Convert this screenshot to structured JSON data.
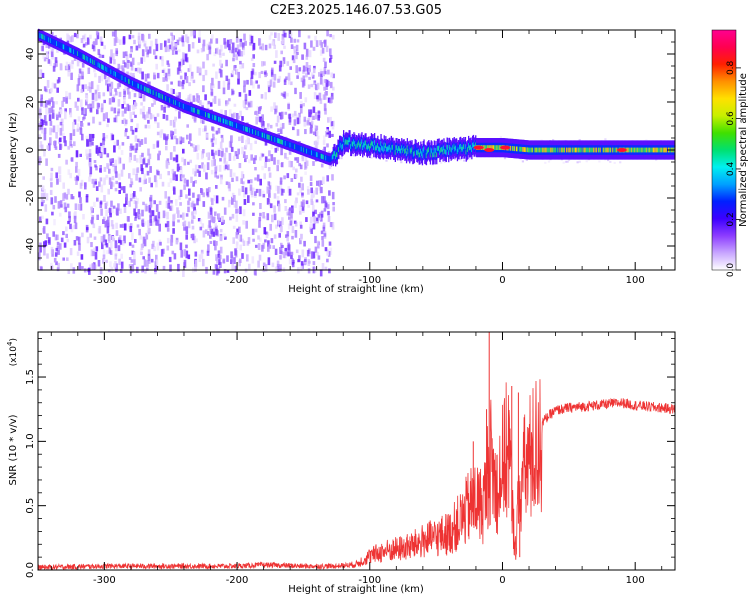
{
  "figure": {
    "title": "C2E3.2025.146.07.53.G05"
  },
  "chart_data": [
    {
      "type": "heatmap",
      "xlabel": "Height of straight line (km)",
      "ylabel": "Frequency (Hz)",
      "xlim": [
        -350,
        130
      ],
      "ylim": [
        -50,
        50
      ],
      "x_ticks": [
        -300,
        -200,
        -100,
        0,
        100
      ],
      "x_tick_labels": [
        "-300",
        "-200",
        "-100",
        "0",
        "100"
      ],
      "y_ticks": [
        -40,
        -20,
        0,
        20,
        40
      ],
      "y_tick_labels": [
        "-40",
        "-20",
        "0",
        "20",
        "40"
      ],
      "colorbar": {
        "label": "Normalized spectral amplitude",
        "range": [
          0,
          0.95
        ],
        "ticks": [
          0.0,
          0.2,
          0.4,
          0.6,
          0.8
        ],
        "tick_labels": [
          "0.0",
          "0.2",
          "0.4",
          "0.6",
          "0.8"
        ],
        "colors": [
          "#ffffff",
          "#c8a6ff",
          "#8c3cff",
          "#3c00ff",
          "#0020ff",
          "#00a0ff",
          "#00f0f0",
          "#00e070",
          "#40e000",
          "#c8f000",
          "#ffe000",
          "#ff9000",
          "#ff2000",
          "#ff0050",
          "#ff0090"
        ]
      },
      "ridge": {
        "x": [
          -350,
          -320,
          -300,
          -280,
          -260,
          -240,
          -220,
          -200,
          -180,
          -160,
          -140,
          -130,
          -120,
          -100,
          -80,
          -60,
          -40,
          -20,
          0,
          20,
          50,
          80,
          100,
          130
        ],
        "frequency": [
          48,
          40,
          34,
          28,
          23,
          18,
          14,
          10,
          6,
          2,
          -2,
          -4,
          3,
          2,
          0,
          -1,
          0,
          1,
          1,
          0,
          0,
          0,
          0,
          0
        ]
      },
      "grid": false
    },
    {
      "type": "line",
      "xlabel": "Height of straight line (km)",
      "ylabel": "SNR (10 * v/v)",
      "y_multiplier_label": "(x10",
      "y_multiplier_exp": "4",
      "xlim": [
        -350,
        130
      ],
      "ylim": [
        0.0,
        1.85
      ],
      "x_ticks": [
        -300,
        -200,
        -100,
        0,
        100
      ],
      "x_tick_labels": [
        "-300",
        "-200",
        "-100",
        "0",
        "100"
      ],
      "y_ticks": [
        0.0,
        0.5,
        1.0,
        1.5
      ],
      "y_tick_labels": [
        "0.0",
        "0.5",
        "1.0",
        "1.5"
      ],
      "series": [
        {
          "color": "#ee3333",
          "x": [
            -350,
            -300,
            -250,
            -200,
            -180,
            -150,
            -125,
            -110,
            -100,
            -90,
            -80,
            -70,
            -60,
            -50,
            -40,
            -30,
            -25,
            -20,
            -15,
            -12,
            -10,
            -8,
            -5,
            0,
            5,
            8,
            10,
            12,
            15,
            20,
            25,
            30,
            35,
            40,
            50,
            60,
            70,
            80,
            90,
            100,
            110,
            120,
            130
          ],
          "y": [
            0.02,
            0.03,
            0.03,
            0.03,
            0.04,
            0.03,
            0.03,
            0.05,
            0.12,
            0.16,
            0.18,
            0.2,
            0.25,
            0.28,
            0.32,
            0.45,
            0.55,
            0.6,
            0.55,
            0.7,
            1.0,
            0.9,
            0.7,
            0.9,
            1.1,
            0.4,
            0.2,
            0.6,
            0.8,
            0.95,
            1.05,
            1.15,
            1.2,
            1.24,
            1.26,
            1.27,
            1.28,
            1.29,
            1.3,
            1.28,
            1.27,
            1.26,
            1.25
          ],
          "spikes": [
            {
              "x": -10,
              "y": 1.85
            },
            {
              "x": -12,
              "y": 1.25
            },
            {
              "x": -22,
              "y": 1.0
            },
            {
              "x": 7,
              "y": 1.43
            },
            {
              "x": 12,
              "y": 1.38
            },
            {
              "x": 10,
              "y": 0.08
            },
            {
              "x": 13,
              "y": 0.1
            }
          ]
        }
      ],
      "grid": false
    }
  ]
}
